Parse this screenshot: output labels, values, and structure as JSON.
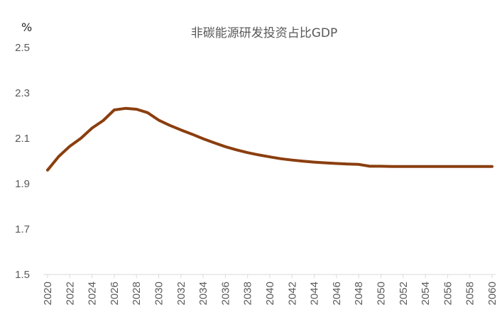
{
  "chart_data": {
    "type": "line",
    "title": "非碳能源研发投资占比GDP",
    "unit_label": "%",
    "xlabel": "",
    "ylabel": "",
    "ylim": [
      1.5,
      2.5
    ],
    "yticks": [
      "2.5",
      "2.3",
      "2.1",
      "1.9",
      "1.7",
      "1.5"
    ],
    "xticks": [
      "2020",
      "2022",
      "2024",
      "2026",
      "2028",
      "2030",
      "2032",
      "2034",
      "2036",
      "2038",
      "2040",
      "2042",
      "2044",
      "2046",
      "2048",
      "2050",
      "2052",
      "2054",
      "2056",
      "2058",
      "2060"
    ],
    "grid": false,
    "legend": "none",
    "line_color": "#8B3E0F",
    "x": [
      2020,
      2021,
      2022,
      2023,
      2024,
      2025,
      2026,
      2027,
      2028,
      2029,
      2030,
      2031,
      2032,
      2033,
      2034,
      2035,
      2036,
      2037,
      2038,
      2039,
      2040,
      2041,
      2042,
      2043,
      2044,
      2045,
      2046,
      2047,
      2048,
      2049,
      2050,
      2051,
      2052,
      2053,
      2054,
      2055,
      2056,
      2057,
      2058,
      2059,
      2060
    ],
    "values": [
      1.96,
      2.02,
      2.065,
      2.1,
      2.145,
      2.178,
      2.225,
      2.232,
      2.228,
      2.213,
      2.18,
      2.157,
      2.137,
      2.118,
      2.098,
      2.08,
      2.063,
      2.049,
      2.037,
      2.027,
      2.018,
      2.01,
      2.004,
      1.999,
      1.995,
      1.992,
      1.989,
      1.987,
      1.985,
      1.977,
      1.977,
      1.976,
      1.976,
      1.976,
      1.976,
      1.976,
      1.976,
      1.976,
      1.976,
      1.976,
      1.976
    ]
  }
}
